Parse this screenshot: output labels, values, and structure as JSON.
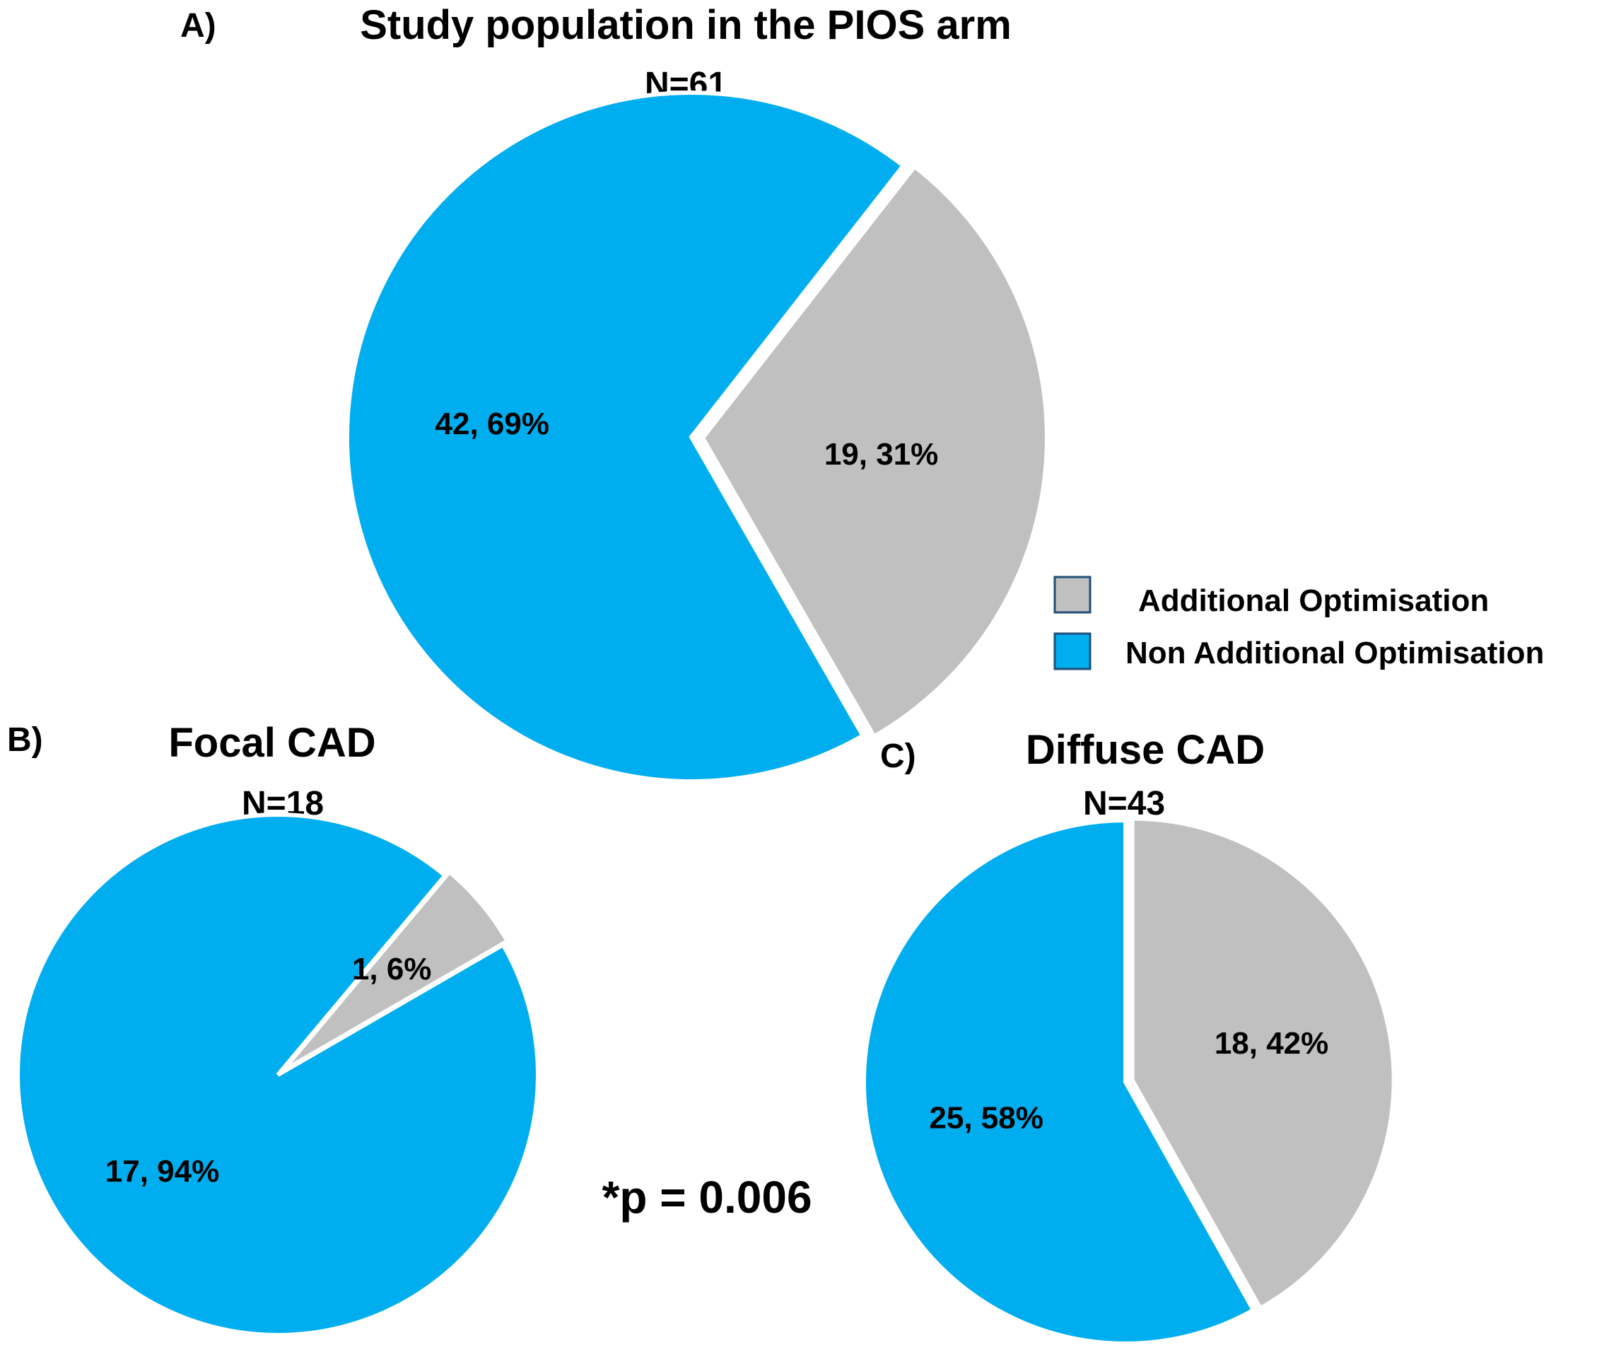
{
  "chart_data": [
    {
      "type": "pie",
      "panel": "A)",
      "title": "Study population in the PIOS arm",
      "subtitle": "N=61",
      "slices": [
        {
          "name": "Additional Optimisation",
          "value": 19,
          "percent": 31,
          "label": "19, 31%",
          "color": "#c0c0c0"
        },
        {
          "name": "Non Additional Optimisation",
          "value": 42,
          "percent": 69,
          "label": "42, 69%",
          "color": "#00aeef"
        }
      ]
    },
    {
      "type": "pie",
      "panel": "B)",
      "title": "Focal CAD",
      "subtitle": "N=18",
      "slices": [
        {
          "name": "Additional Optimisation",
          "value": 1,
          "percent": 6,
          "label": "1, 6%",
          "color": "#c0c0c0"
        },
        {
          "name": "Non Additional Optimisation",
          "value": 17,
          "percent": 94,
          "label": "17, 94%",
          "color": "#00aeef"
        }
      ]
    },
    {
      "type": "pie",
      "panel": "C)",
      "title": "Diffuse CAD",
      "subtitle": "N=43",
      "slices": [
        {
          "name": "Additional Optimisation",
          "value": 18,
          "percent": 42,
          "label": "18, 42%",
          "color": "#c0c0c0"
        },
        {
          "name": "Non Additional Optimisation",
          "value": 25,
          "percent": 58,
          "label": "25, 58%",
          "color": "#00aeef"
        }
      ]
    }
  ],
  "legend": {
    "items": [
      {
        "label": "Additional Optimisation",
        "color": "#c0c0c0"
      },
      {
        "label": "Non Additional Optimisation",
        "color": "#00aeef"
      }
    ],
    "border_color": "#1f4e79"
  },
  "annotation": "*p = 0.006"
}
